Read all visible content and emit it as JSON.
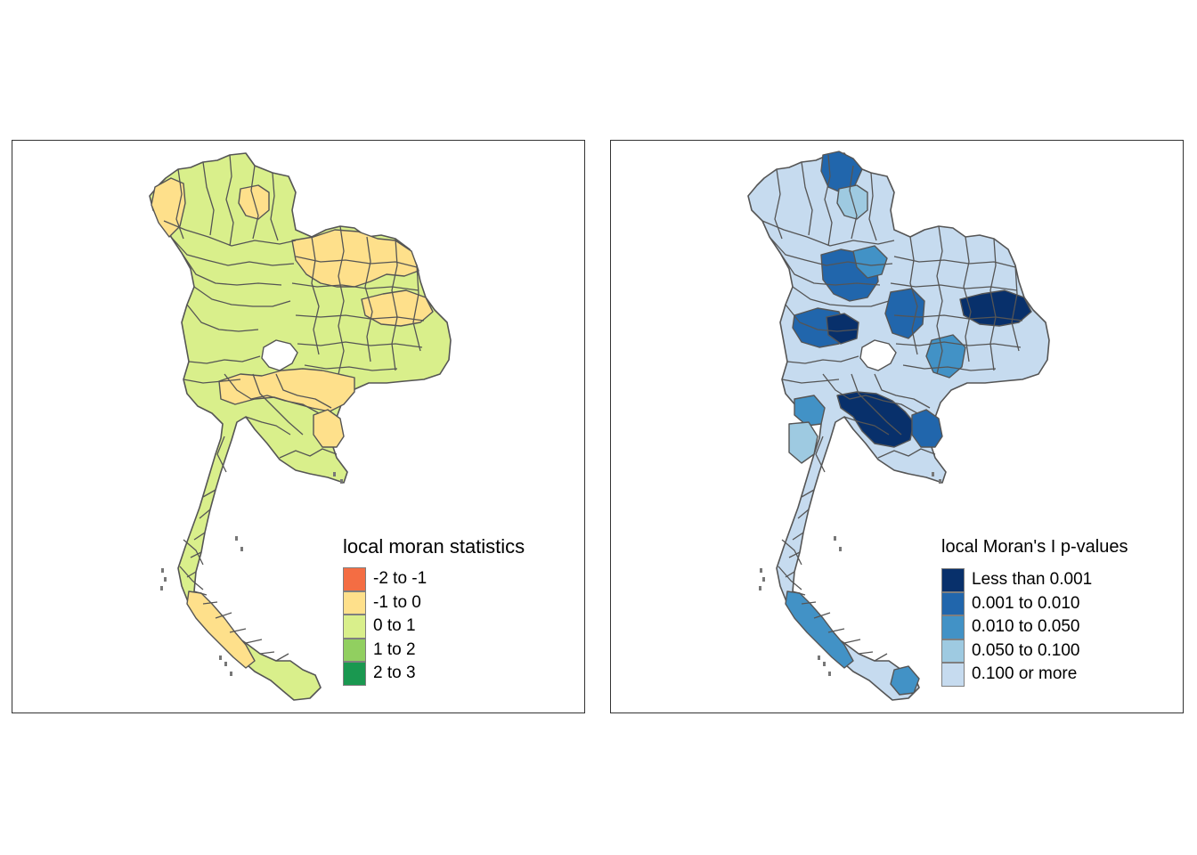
{
  "maps": [
    {
      "id": "left",
      "legend_title": "local moran statistics",
      "legend": [
        {
          "label": "-2 to -1",
          "color": "#f46d43"
        },
        {
          "label": "-1 to 0",
          "color": "#fee08b"
        },
        {
          "label": "0 to 1",
          "color": "#d9ef8b"
        },
        {
          "label": "1 to 2",
          "color": "#91cf60"
        },
        {
          "label": "2 to 3",
          "color": "#1a9850"
        }
      ],
      "base_fill": "#d9ef8b",
      "highlights": [
        {
          "region": "northeast-upper",
          "color": "#fee08b"
        },
        {
          "region": "northeast-east",
          "color": "#fee08b"
        },
        {
          "region": "north-west-small",
          "color": "#fee08b"
        },
        {
          "region": "north-center-small",
          "color": "#fee08b"
        },
        {
          "region": "central-belt",
          "color": "#fee08b"
        },
        {
          "region": "east-coast",
          "color": "#fee08b"
        },
        {
          "region": "south-west",
          "color": "#fee08b"
        }
      ]
    },
    {
      "id": "right",
      "legend_title": "local Moran's I p-values",
      "legend": [
        {
          "label": "Less than 0.001",
          "color": "#08306b"
        },
        {
          "label": "0.001 to 0.010",
          "color": "#2166ac"
        },
        {
          "label": "0.010 to 0.050",
          "color": "#4292c6"
        },
        {
          "label": "0.050 to 0.100",
          "color": "#9ecae1"
        },
        {
          "label": "0.100 or more",
          "color": "#c6dbef"
        }
      ],
      "base_fill": "#c6dbef",
      "highlights": [
        {
          "region": "north-tip",
          "color": "#2166ac"
        },
        {
          "region": "north-center-small",
          "color": "#9ecae1"
        },
        {
          "region": "upper-central",
          "color": "#2166ac"
        },
        {
          "region": "upper-central-2",
          "color": "#4292c6"
        },
        {
          "region": "lower-north-west",
          "color": "#2166ac"
        },
        {
          "region": "lower-north-dark",
          "color": "#08306b"
        },
        {
          "region": "northeast-center",
          "color": "#2166ac"
        },
        {
          "region": "northeast-east",
          "color": "#08306b"
        },
        {
          "region": "northeast-east-2",
          "color": "#2166ac"
        },
        {
          "region": "northeast-south",
          "color": "#4292c6"
        },
        {
          "region": "central-west",
          "color": "#4292c6"
        },
        {
          "region": "bangkok-area",
          "color": "#08306b"
        },
        {
          "region": "east-coast",
          "color": "#2166ac"
        },
        {
          "region": "west-coast",
          "color": "#9ecae1"
        },
        {
          "region": "south-west",
          "color": "#4292c6"
        },
        {
          "region": "south-tip",
          "color": "#4292c6"
        }
      ]
    }
  ]
}
